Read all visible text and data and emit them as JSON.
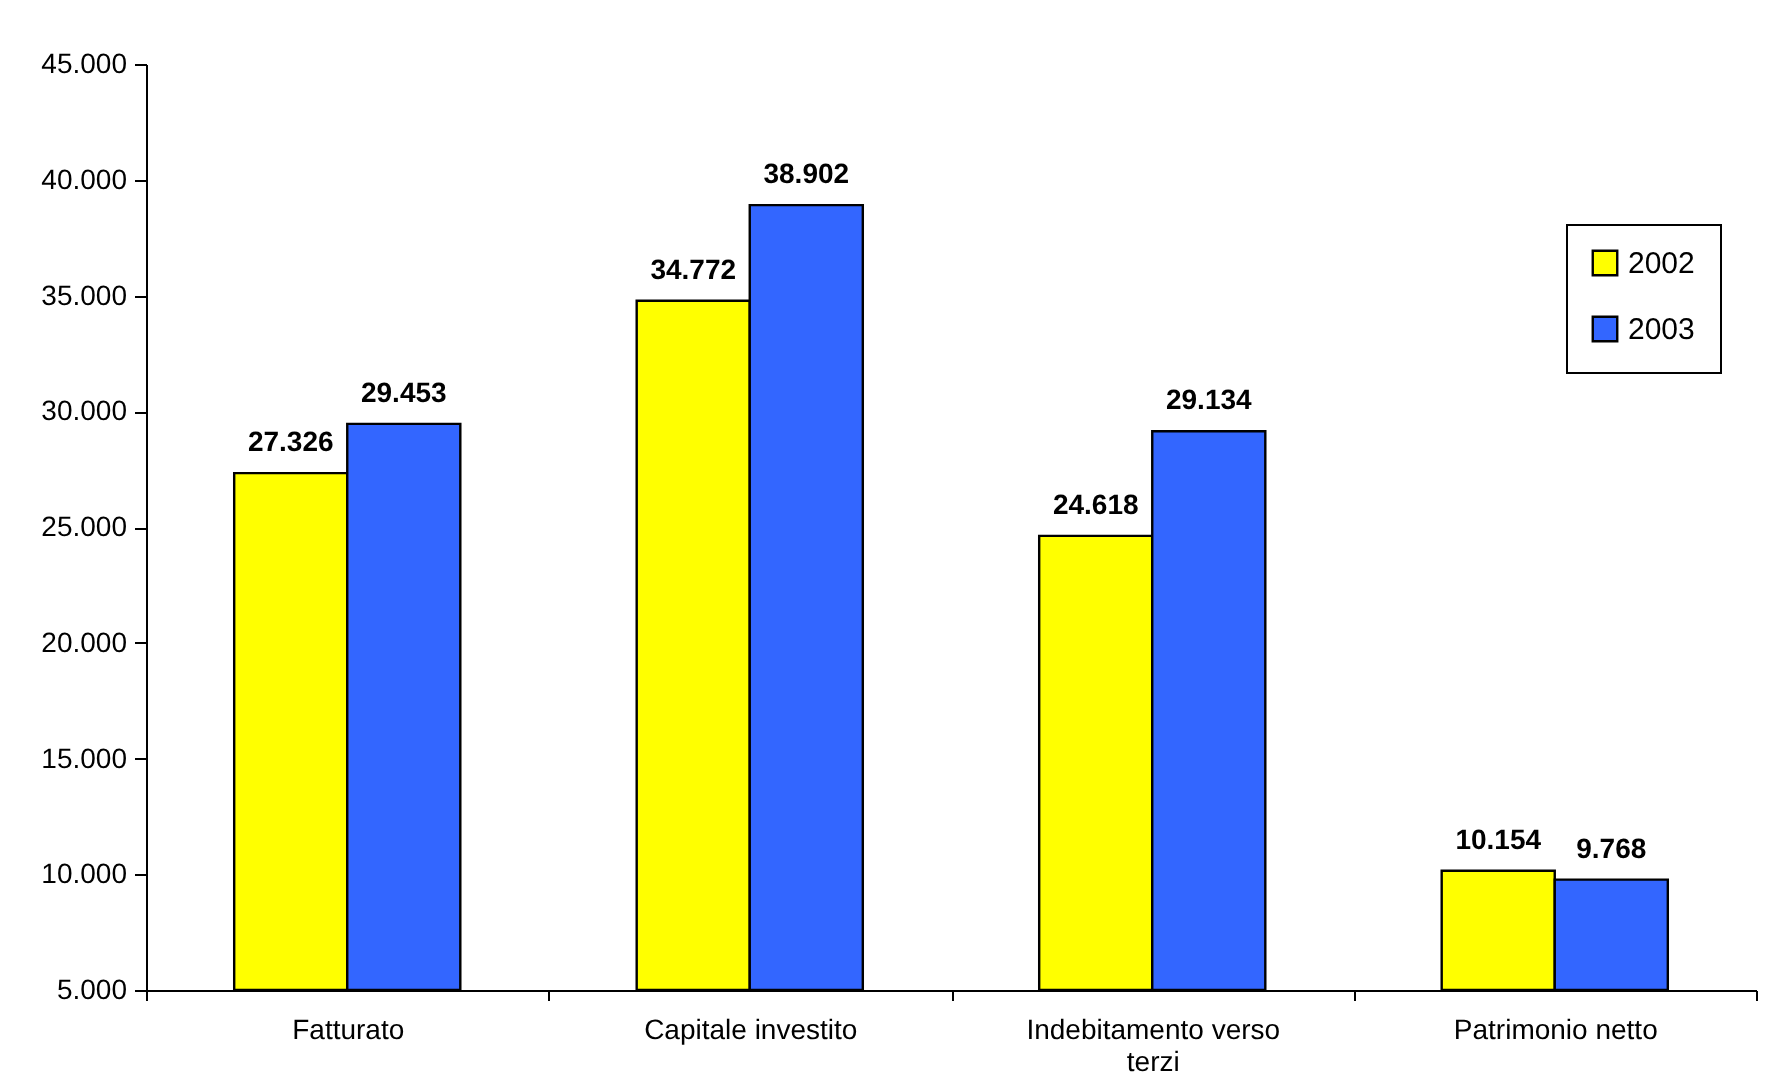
{
  "chart_data": {
    "type": "bar",
    "categories": [
      "Fatturato",
      "Capitale investito",
      "Indebitamento verso terzi",
      "Patrimonio netto"
    ],
    "series": [
      {
        "name": "2002",
        "color": "#ffff00",
        "values": [
          27326,
          34772,
          24618,
          10154
        ],
        "value_labels": [
          "27.326",
          "34.772",
          "24.618",
          "10.154"
        ]
      },
      {
        "name": "2003",
        "color": "#3366ff",
        "values": [
          29453,
          38902,
          29134,
          9768
        ],
        "value_labels": [
          "29.453",
          "38.902",
          "29.134",
          "9.768"
        ]
      }
    ],
    "ylim": [
      5000,
      45000
    ],
    "yticks": [
      {
        "value": 5000,
        "label": "5.000"
      },
      {
        "value": 10000,
        "label": "10.000"
      },
      {
        "value": 15000,
        "label": "15.000"
      },
      {
        "value": 20000,
        "label": "20.000"
      },
      {
        "value": 25000,
        "label": "25.000"
      },
      {
        "value": 30000,
        "label": "30.000"
      },
      {
        "value": 35000,
        "label": "35.000"
      },
      {
        "value": 40000,
        "label": "40.000"
      },
      {
        "value": 45000,
        "label": "45.000"
      }
    ],
    "legend": "top right"
  }
}
